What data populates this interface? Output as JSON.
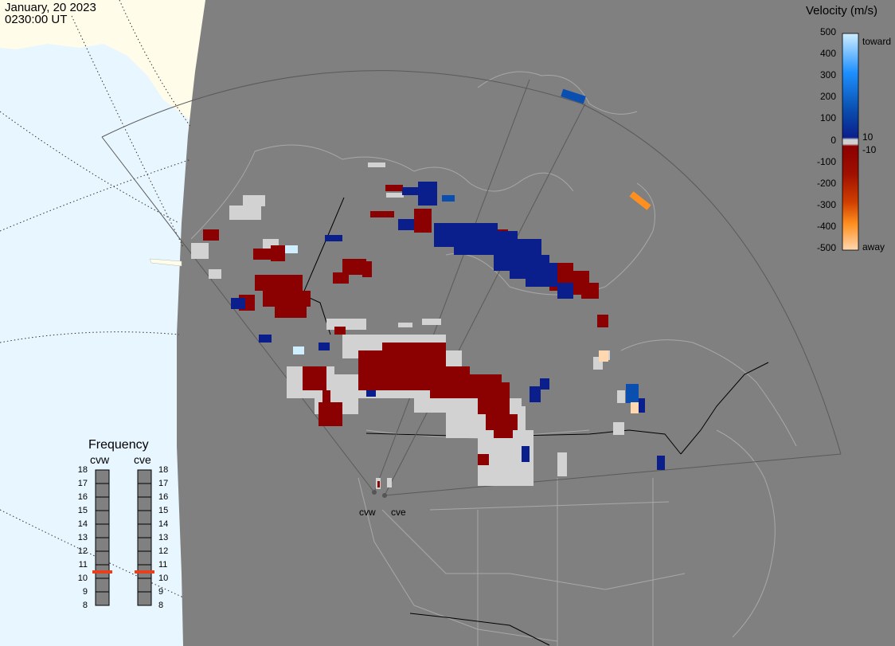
{
  "header": {
    "date": "January, 20 2023",
    "time": "0230:00 UT"
  },
  "velocity_legend": {
    "title": "Velocity (m/s)",
    "ticks": [
      "500",
      "400",
      "300",
      "200",
      "100",
      "0",
      "-100",
      "-200",
      "-300",
      "-400",
      "-500"
    ],
    "side_labels": {
      "toward": "toward",
      "away": "away",
      "pos_min": "10",
      "neg_min": "-10"
    },
    "colors": {
      "toward_max": "#cfeeff",
      "toward_high": "#1e90ff",
      "toward_mid": "#0a4fb0",
      "toward_low": "#0b1f8c",
      "zero": "#d0d0d0",
      "away_low": "#8b0000",
      "away_mid": "#d04000",
      "away_high": "#ff9020",
      "away_max": "#ffd8b0"
    }
  },
  "frequency": {
    "title": "Frequency",
    "radars": [
      "cvw",
      "cve"
    ],
    "scale": [
      "18",
      "17",
      "16",
      "15",
      "14",
      "13",
      "12",
      "11",
      "10",
      "9",
      "8"
    ],
    "current": [
      11,
      11
    ],
    "marker_color": "#e8401c"
  },
  "sites": [
    "cvw",
    "cve"
  ],
  "map": {
    "colors": {
      "night": "#808080",
      "day_land": "#fffcea",
      "day_ocean": "#e8f6ff",
      "coast": "#a8a8a8",
      "border": "#000000",
      "fov": "#5a5a5a",
      "gs": "#d2d2d2"
    }
  }
}
